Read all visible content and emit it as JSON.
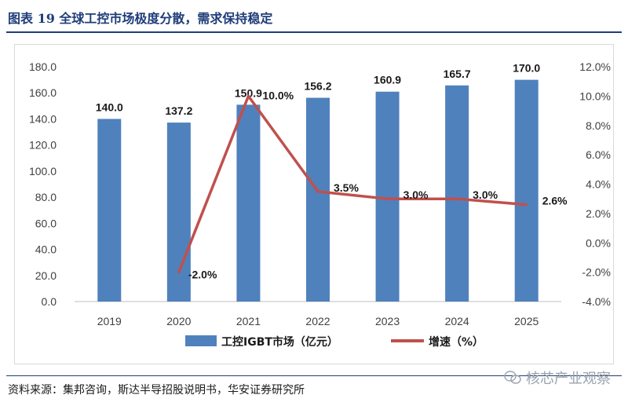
{
  "figure": {
    "title": "图表 19 全球工控市场极度分散，需求保持稳定",
    "source": "资料来源：集邦咨询，斯达半导招股说明书，华安证券研究所",
    "watermark": "核芯产业观察"
  },
  "colors": {
    "bar": "#4f81bd",
    "line": "#c0504d",
    "title": "#1f3d7a"
  },
  "chart_data": {
    "type": "bar",
    "categories": [
      "2019",
      "2020",
      "2021",
      "2022",
      "2023",
      "2024",
      "2025"
    ],
    "series": [
      {
        "name": "工控IGBT市场（亿元）",
        "type": "bar",
        "axis": "left",
        "values": [
          140.0,
          137.2,
          150.9,
          156.2,
          160.9,
          165.7,
          170.0
        ],
        "labels": [
          "140.0",
          "137.2",
          "150.9",
          "156.2",
          "160.9",
          "165.7",
          "170.0"
        ]
      },
      {
        "name": "增速（%）",
        "type": "line",
        "axis": "right",
        "values": [
          null,
          -2.0,
          10.0,
          3.5,
          3.0,
          3.0,
          2.6
        ],
        "labels": [
          "",
          "-2.0%",
          "10.0%",
          "3.5%",
          "3.0%",
          "3.0%",
          "2.6%"
        ]
      }
    ],
    "left_axis": {
      "ylim": [
        0,
        180
      ],
      "ticks": [
        "0.0",
        "20.0",
        "40.0",
        "60.0",
        "80.0",
        "100.0",
        "120.0",
        "140.0",
        "160.0",
        "180.0"
      ]
    },
    "right_axis": {
      "ylim": [
        -4,
        12
      ],
      "ticks": [
        "-4.0%",
        "-2.0%",
        "0.0%",
        "2.0%",
        "4.0%",
        "6.0%",
        "8.0%",
        "10.0%",
        "12.0%"
      ]
    },
    "grid": false,
    "legend_position": "bottom"
  }
}
